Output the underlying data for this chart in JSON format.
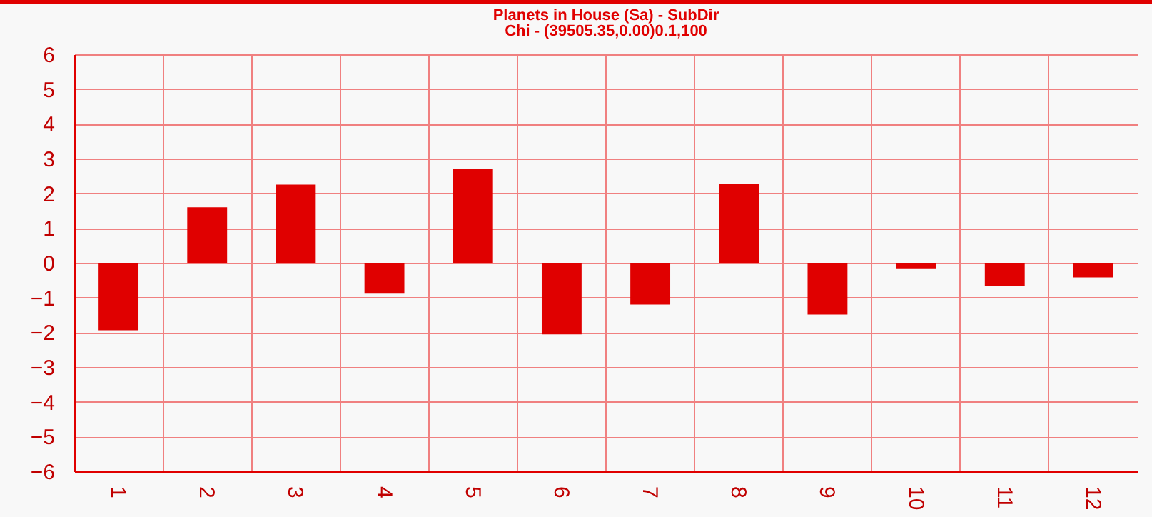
{
  "chart_data": {
    "type": "bar",
    "title": "Planets in House (Sa) - SubDir",
    "subtitle": "Chi - (39505.35,0.00)0.1,100",
    "categories": [
      "1",
      "2",
      "3",
      "4",
      "5",
      "6",
      "7",
      "8",
      "9",
      "10",
      "11",
      "12"
    ],
    "values": [
      -1.94,
      1.6,
      2.25,
      -0.89,
      2.7,
      -2.06,
      -1.2,
      2.26,
      -1.49,
      -0.18,
      -0.67,
      -0.42
    ],
    "color": "#e00000",
    "ylim": [
      -6,
      6
    ],
    "yticks": [
      -6,
      -5,
      -4,
      -3,
      -2,
      -1,
      0,
      1,
      2,
      3,
      4,
      5,
      6
    ],
    "grid": true
  }
}
